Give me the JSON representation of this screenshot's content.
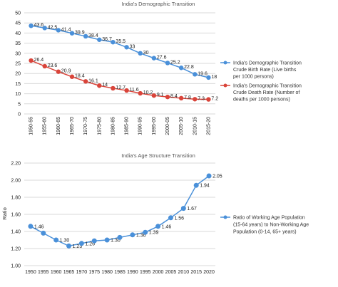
{
  "chart_data": [
    {
      "type": "line",
      "title": "India's Demographic Transition",
      "categories": [
        "1950-55",
        "1955-60",
        "1960-65",
        "1965-70",
        "1970-75",
        "1975-80",
        "1980-85",
        "1985-90",
        "1990-95",
        "1995-00",
        "2000-05",
        "2005-10",
        "2010-15",
        "2015-20"
      ],
      "ylim": [
        0,
        50
      ],
      "yticks": [
        0,
        5,
        10,
        15,
        20,
        25,
        30,
        35,
        40,
        45,
        50
      ],
      "grid": true,
      "legend_position": "right",
      "series": [
        {
          "name": "India's Demographic Transition Crude Birth Rate (Live births per 1000 persons)",
          "color": "#4a90d9",
          "values": [
            43.6,
            42.5,
            41.4,
            39.9,
            38.4,
            36.7,
            35.5,
            33,
            30,
            27.6,
            25.2,
            22.8,
            19.6,
            18
          ],
          "labels": [
            "43.6",
            "42.5",
            "41.4",
            "39.9",
            "38.4",
            "36.7",
            "35.5",
            "33",
            "30",
            "27.6",
            "25.2",
            "22.8",
            "19.6",
            "18"
          ]
        },
        {
          "name": "India's Demographic Transition Crude Death Rate (Number of deaths per 1000 persons)",
          "color": "#d9443a",
          "values": [
            26.4,
            23.6,
            20.9,
            18.4,
            16.1,
            14,
            12.7,
            11.6,
            10.2,
            9.1,
            8.4,
            7.8,
            7.3,
            7.2
          ],
          "labels": [
            "26.4",
            "23.6",
            "20.9",
            "18.4",
            "16.1",
            "14",
            "12.7",
            "11.6",
            "10.2",
            "9.1",
            "8.4",
            "7.8",
            "7.3",
            "7.2"
          ]
        }
      ]
    },
    {
      "type": "line",
      "title": "India's Age Structure Transition",
      "categories": [
        "1950",
        "1955",
        "1960",
        "1965",
        "1970",
        "1975",
        "1980",
        "1985",
        "1990",
        "1995",
        "2000",
        "2005",
        "2010",
        "2015",
        "2020"
      ],
      "ylabel": "Ratio",
      "ylim": [
        1.0,
        2.2
      ],
      "yticks": [
        "1.00",
        "1.20",
        "1.40",
        "1.60",
        "1.80",
        "2.00",
        "2.20"
      ],
      "grid": true,
      "legend_position": "right",
      "series": [
        {
          "name": "Ratio of Working Age Population (15-64 years) to Non-Working Age Population (0-14, 65+ years)",
          "color": "#4a90d9",
          "values": [
            1.46,
            1.38,
            1.3,
            1.23,
            1.26,
            1.29,
            1.3,
            1.33,
            1.36,
            1.39,
            1.46,
            1.56,
            1.67,
            1.94,
            2.05
          ],
          "labels": [
            "1.46",
            "",
            "1.30",
            "1.23",
            "1.26",
            "",
            "1.30",
            "",
            "1.36",
            "1.39",
            "1.46",
            "1.56",
            "1.67",
            "1.94",
            "2.05"
          ]
        }
      ]
    }
  ]
}
